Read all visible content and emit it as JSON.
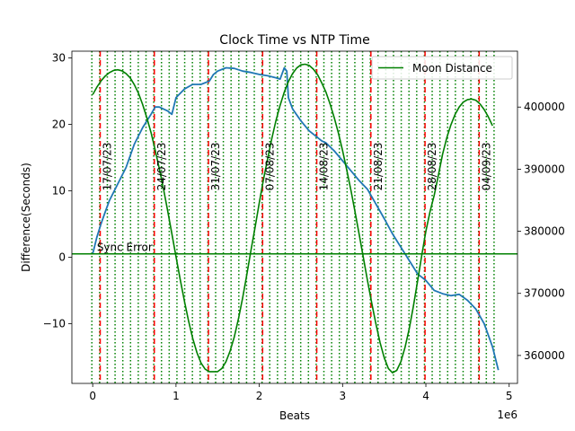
{
  "chart_data": {
    "type": "line",
    "title": "Clock Time vs NTP Time",
    "xlabel": "Beats",
    "ylabel": "Difference(Seconds)",
    "x_offset_label": "1e6",
    "xlim": [
      -250000,
      5100000
    ],
    "ylim": [
      -19,
      31
    ],
    "y2lim": [
      355500,
      409000
    ],
    "x_ticks": [
      0,
      1000000,
      2000000,
      3000000,
      4000000,
      5000000
    ],
    "x_tick_labels": [
      "0",
      "1",
      "2",
      "3",
      "4",
      "5"
    ],
    "y_ticks": [
      -10,
      0,
      10,
      20,
      30
    ],
    "y_tick_labels": [
      "−10",
      "0",
      "10",
      "20",
      "30"
    ],
    "y2_ticks": [
      360000,
      370000,
      380000,
      390000,
      400000
    ],
    "y2_tick_labels": [
      "360000",
      "370000",
      "380000",
      "390000",
      "400000"
    ],
    "sync_error": {
      "y": 0.5,
      "label": "Sync Error",
      "color": "#008000"
    },
    "legend": {
      "position": "top-right",
      "entries": [
        {
          "label": "Moon Distance",
          "color": "#008000"
        }
      ]
    },
    "week_markers": {
      "color": "#ff0000",
      "x": [
        90000,
        740000,
        1390000,
        2040000,
        2690000,
        3340000,
        3990000,
        4640000
      ],
      "labels": [
        "17/07/23",
        "24/07/23",
        "31/07/23",
        "07/08/23",
        "14/08/23",
        "21/08/23",
        "28/08/23",
        "04/09/23"
      ]
    },
    "day_markers": {
      "color": "#008000",
      "start": -10000,
      "step": 92857,
      "end": 4900000
    },
    "series": [
      {
        "role": "clock-difference",
        "color": "#1f77b4",
        "x": [
          0,
          50000,
          100000,
          150000,
          200000,
          300000,
          400000,
          500000,
          600000,
          700000,
          750000,
          800000,
          850000,
          900000,
          950000,
          1000000,
          1100000,
          1200000,
          1300000,
          1400000,
          1450000,
          1500000,
          1600000,
          1700000,
          1800000,
          1900000,
          2000000,
          2100000,
          2200000,
          2250000,
          2300000,
          2330000,
          2350000,
          2400000,
          2500000,
          2600000,
          2700000,
          2750000,
          2800000,
          2900000,
          3000000,
          3100000,
          3200000,
          3300000,
          3400000,
          3500000,
          3600000,
          3700000,
          3800000,
          3900000,
          4000000,
          4100000,
          4200000,
          4300000,
          4400000,
          4500000,
          4600000,
          4700000,
          4800000,
          4870000
        ],
        "y": [
          0.5,
          3,
          5,
          6.8,
          8.5,
          11,
          13.5,
          17,
          19.5,
          21.5,
          22.6,
          22.6,
          22.3,
          22,
          21.5,
          24,
          25.3,
          26,
          26,
          26.5,
          27.5,
          28,
          28.5,
          28.4,
          28,
          27.8,
          27.5,
          27.3,
          27,
          26.8,
          28.5,
          28,
          24,
          22.3,
          20.5,
          19,
          18,
          17.5,
          17.2,
          16,
          14.5,
          13,
          11.5,
          10.2,
          8,
          5.8,
          3.5,
          1.5,
          -0.5,
          -2.5,
          -3.5,
          -5,
          -5.5,
          -5.8,
          -5.6,
          -6.5,
          -7.8,
          -10,
          -13.5,
          -17
        ]
      },
      {
        "role": "moon-distance",
        "name": "Moon Distance",
        "color": "#008000",
        "x": [
          0,
          50000,
          100000,
          150000,
          200000,
          250000,
          300000,
          350000,
          400000,
          450000,
          500000,
          550000,
          600000,
          650000,
          700000,
          750000,
          800000,
          850000,
          900000,
          950000,
          1000000,
          1050000,
          1100000,
          1150000,
          1200000,
          1250000,
          1300000,
          1350000,
          1400000,
          1450000,
          1500000,
          1550000,
          1600000,
          1650000,
          1700000,
          1750000,
          1800000,
          1850000,
          1900000,
          1950000,
          2000000,
          2050000,
          2100000,
          2150000,
          2200000,
          2250000,
          2300000,
          2350000,
          2400000,
          2450000,
          2500000,
          2550000,
          2600000,
          2650000,
          2700000,
          2750000,
          2800000,
          2850000,
          2900000,
          2950000,
          3000000,
          3050000,
          3100000,
          3150000,
          3200000,
          3250000,
          3300000,
          3350000,
          3400000,
          3450000,
          3500000,
          3550000,
          3600000,
          3650000,
          3700000,
          3750000,
          3800000,
          3850000,
          3900000,
          3950000,
          4000000,
          4050000,
          4100000,
          4150000,
          4200000,
          4250000,
          4300000,
          4350000,
          4400000,
          4450000,
          4500000,
          4550000,
          4600000,
          4650000,
          4700000,
          4750000,
          4800000
        ],
        "y": [
          402000,
          403200,
          404200,
          405000,
          405550,
          405900,
          406000,
          405850,
          405400,
          404700,
          403600,
          402200,
          400400,
          398300,
          395900,
          393100,
          390100,
          386800,
          383300,
          379600,
          375900,
          372300,
          368800,
          365600,
          362800,
          360500,
          358800,
          357800,
          357400,
          357400,
          357400,
          357900,
          359000,
          360700,
          363000,
          365900,
          369300,
          373000,
          376900,
          380700,
          384600,
          388300,
          391700,
          394900,
          397800,
          400300,
          402400,
          404100,
          405400,
          406300,
          406800,
          406900,
          406700,
          406100,
          405200,
          403900,
          402400,
          400500,
          398300,
          395800,
          393000,
          389900,
          386600,
          383100,
          379400,
          375700,
          372000,
          368400,
          365100,
          362100,
          359600,
          357900,
          357200,
          357600,
          359000,
          361300,
          364300,
          367900,
          371900,
          376100,
          380000,
          383200,
          385800,
          389000,
          392400,
          395000,
          397100,
          398800,
          400000,
          400800,
          401200,
          401300,
          401100,
          400500,
          399600,
          398400,
          397000
        ]
      }
    ]
  }
}
